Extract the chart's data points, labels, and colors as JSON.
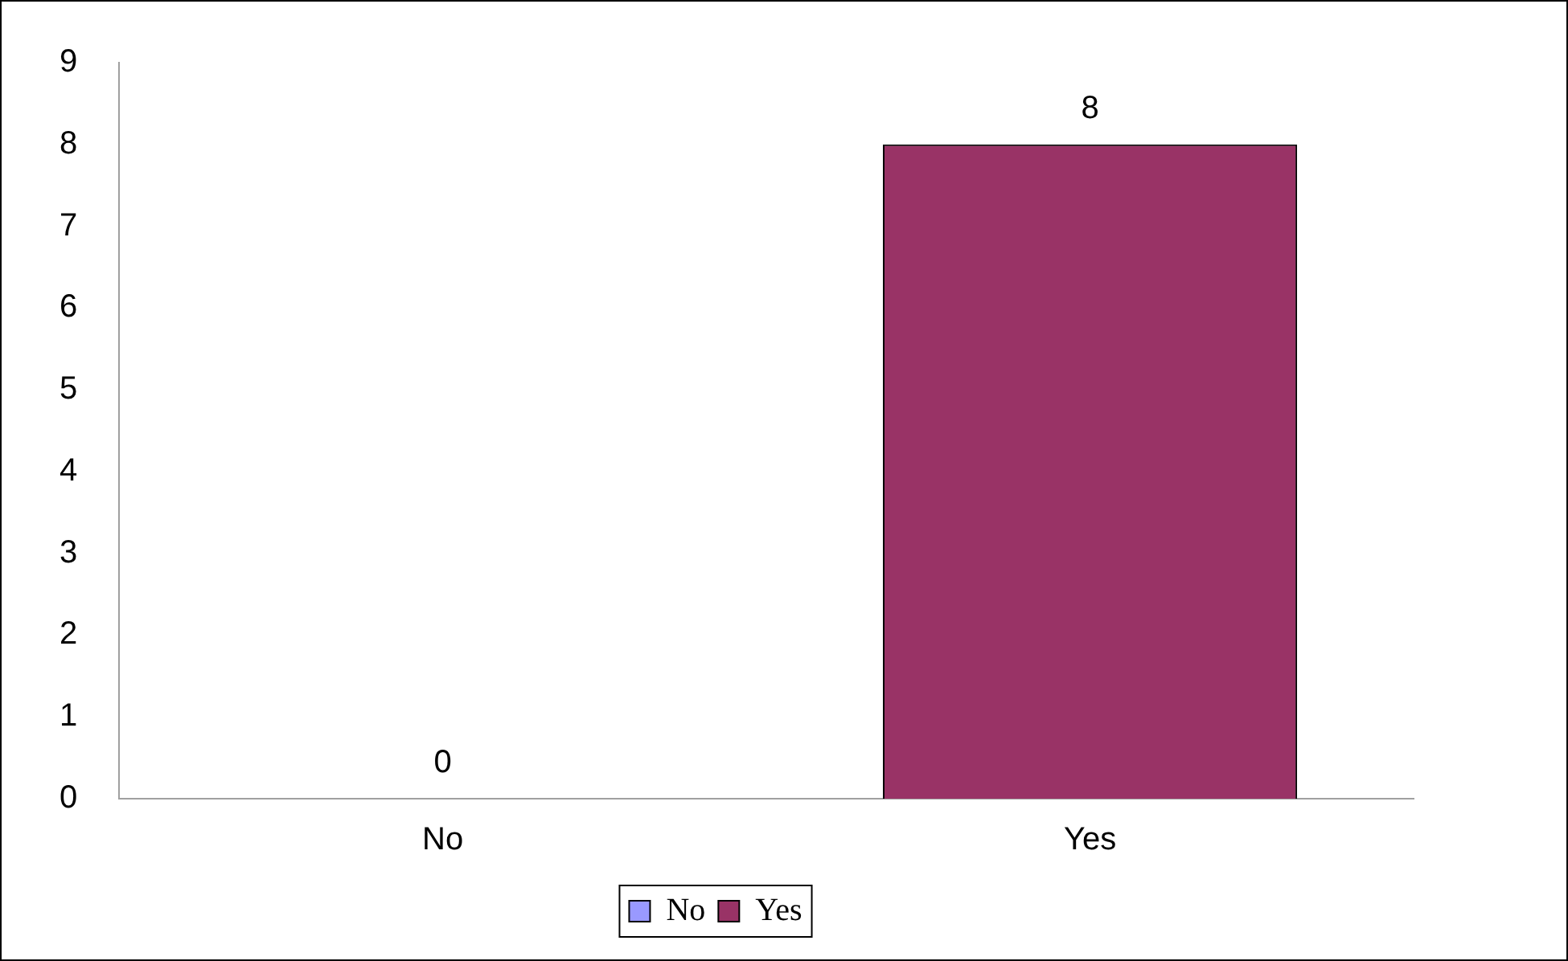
{
  "chart_data": {
    "type": "bar",
    "categories": [
      "No",
      "Yes"
    ],
    "series": [
      {
        "name": "No",
        "color": "#9999ff",
        "values": [
          0,
          null
        ]
      },
      {
        "name": "Yes",
        "color": "#993366",
        "values": [
          null,
          8
        ]
      }
    ],
    "ylim": [
      0,
      9
    ],
    "yticks": [
      0,
      1,
      2,
      3,
      4,
      5,
      6,
      7,
      8,
      9
    ],
    "grid": false,
    "legend": "bottom",
    "data_labels": true
  }
}
